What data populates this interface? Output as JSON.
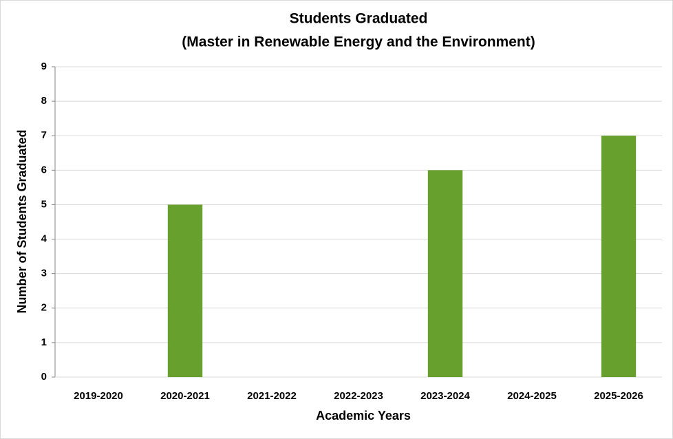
{
  "chart_data": {
    "type": "bar",
    "title": "Students Graduated",
    "subtitle": "(Master in Renewable Energy and the Environment)",
    "x_label": "Academic Years",
    "y_label": "Number of Students Graduated",
    "categories": [
      "2019-2020",
      "2020-2021",
      "2021-2022",
      "2022-2023",
      "2023-2024",
      "2024-2025",
      "2025-2026"
    ],
    "values": [
      0,
      5,
      0,
      0,
      6,
      0,
      7
    ],
    "color": "#67a02d",
    "ylim": [
      0,
      9
    ],
    "yticks": [
      0,
      1,
      2,
      3,
      4,
      5,
      6,
      7,
      8,
      9
    ],
    "grid": true
  }
}
